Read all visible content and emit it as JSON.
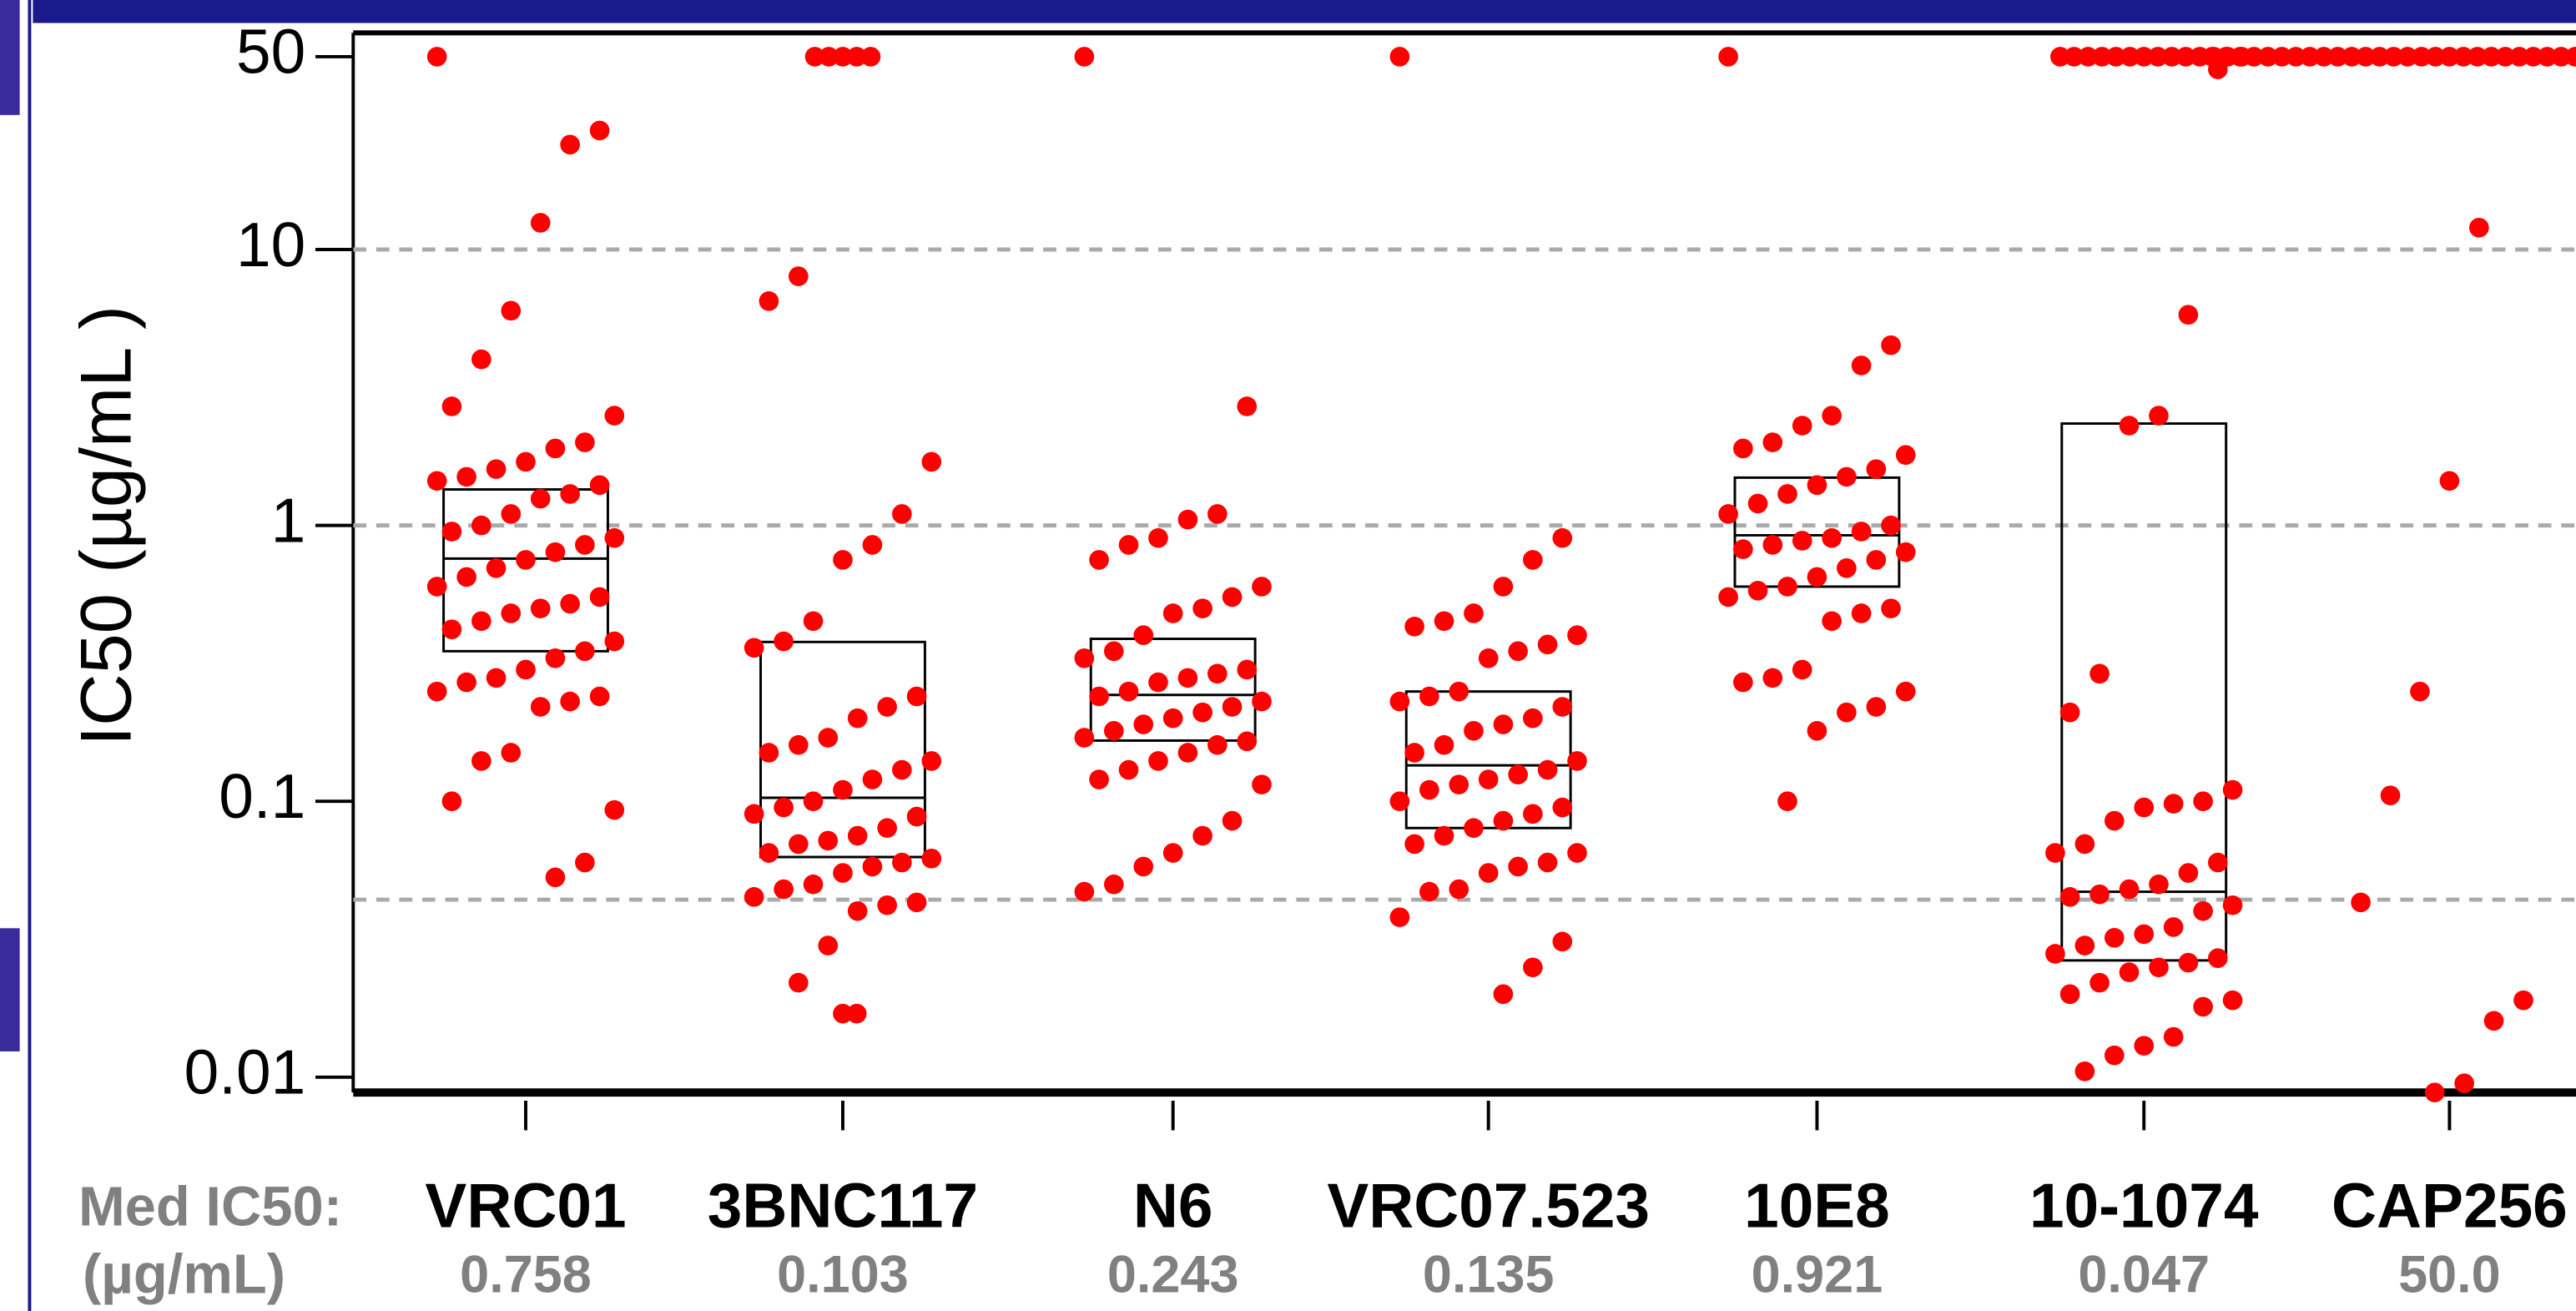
{
  "chart_data": {
    "type": "box",
    "y_label": "IC50 (µg/mL )",
    "row_labels": [
      "Med IC50:",
      "(µg/mL)"
    ],
    "log_scale": true,
    "ylim": [
      0.0088,
      61
    ],
    "yticks": [
      0.01,
      0.1,
      1,
      10,
      50
    ],
    "grid_lines": [
      10,
      1,
      0.044
    ],
    "point_color": "#ff0000",
    "box_color": "#000000",
    "groups": [
      {
        "name": "VRC01",
        "q1": 0.35,
        "median": 0.758,
        "q3": 1.35,
        "points": [
          50,
          27,
          24,
          12.5,
          6,
          4,
          2.7,
          2.5,
          2,
          1.9,
          1.7,
          1.6,
          1.5,
          1.45,
          1.4,
          1.3,
          1.25,
          1.1,
          1.0,
          0.95,
          0.9,
          0.85,
          0.8,
          0.75,
          0.7,
          0.65,
          0.6,
          0.55,
          0.52,
          0.5,
          0.48,
          0.45,
          0.42,
          0.38,
          0.35,
          0.33,
          0.3,
          0.28,
          0.27,
          0.25,
          0.24,
          0.23,
          0.22,
          0.15,
          0.14,
          0.1,
          0.093,
          0.06,
          0.053
        ]
      },
      {
        "name": "3BNC117",
        "q1": 0.0628,
        "median": 0.103,
        "q3": 0.378,
        "points": [
          50,
          50,
          50,
          50,
          50,
          8,
          6.5,
          1.7,
          1.1,
          0.85,
          0.75,
          0.45,
          0.38,
          0.36,
          0.24,
          0.22,
          0.2,
          0.17,
          0.16,
          0.15,
          0.14,
          0.13,
          0.12,
          0.11,
          0.1,
          0.095,
          0.09,
          0.088,
          0.08,
          0.075,
          0.072,
          0.07,
          0.065,
          0.062,
          0.06,
          0.058,
          0.055,
          0.05,
          0.048,
          0.045,
          0.043,
          0.042,
          0.04,
          0.03,
          0.022,
          0.017,
          0.017
        ]
      },
      {
        "name": "N6",
        "q1": 0.166,
        "median": 0.243,
        "q3": 0.388,
        "points": [
          50,
          2.7,
          1.1,
          1.05,
          0.9,
          0.85,
          0.75,
          0.6,
          0.55,
          0.5,
          0.48,
          0.4,
          0.35,
          0.33,
          0.3,
          0.29,
          0.28,
          0.27,
          0.25,
          0.24,
          0.23,
          0.22,
          0.21,
          0.2,
          0.19,
          0.18,
          0.17,
          0.165,
          0.16,
          0.15,
          0.14,
          0.13,
          0.12,
          0.115,
          0.085,
          0.075,
          0.065,
          0.058,
          0.05,
          0.047
        ]
      },
      {
        "name": "VRC07.523",
        "q1": 0.08,
        "median": 0.135,
        "q3": 0.25,
        "points": [
          50,
          0.9,
          0.75,
          0.6,
          0.48,
          0.45,
          0.43,
          0.4,
          0.37,
          0.35,
          0.33,
          0.25,
          0.24,
          0.23,
          0.22,
          0.2,
          0.19,
          0.18,
          0.16,
          0.15,
          0.14,
          0.13,
          0.125,
          0.12,
          0.115,
          0.11,
          0.1,
          0.095,
          0.09,
          0.085,
          0.08,
          0.075,
          0.07,
          0.065,
          0.06,
          0.058,
          0.055,
          0.048,
          0.047,
          0.038,
          0.031,
          0.025,
          0.02
        ]
      },
      {
        "name": "10E8",
        "q1": 0.6,
        "median": 0.921,
        "q3": 1.49,
        "points": [
          50,
          4.5,
          3.8,
          2.5,
          2.3,
          2.0,
          1.9,
          1.8,
          1.6,
          1.5,
          1.4,
          1.3,
          1.2,
          1.1,
          1.0,
          0.95,
          0.9,
          0.88,
          0.85,
          0.82,
          0.8,
          0.75,
          0.7,
          0.65,
          0.6,
          0.58,
          0.55,
          0.5,
          0.48,
          0.45,
          0.3,
          0.28,
          0.27,
          0.25,
          0.22,
          0.21,
          0.18,
          0.1
        ]
      },
      {
        "name": "10-1074",
        "q1": 0.0265,
        "median": 0.047,
        "q3": 2.34,
        "points": [
          50,
          50,
          50,
          50,
          50,
          50,
          50,
          50,
          50,
          50,
          50,
          50,
          50,
          50,
          45,
          5.8,
          2.5,
          2.3,
          0.29,
          0.21,
          0.11,
          0.1,
          0.098,
          0.095,
          0.085,
          0.07,
          0.065,
          0.06,
          0.055,
          0.05,
          0.048,
          0.046,
          0.045,
          0.042,
          0.04,
          0.035,
          0.033,
          0.032,
          0.03,
          0.028,
          0.027,
          0.026,
          0.025,
          0.024,
          0.022,
          0.02,
          0.019,
          0.018,
          0.014,
          0.013,
          0.012,
          0.0105
        ]
      },
      {
        "name": "CAP256",
        "q1": 50,
        "median": 50,
        "q3": 50,
        "median_label": "50.0",
        "points": [
          50,
          50,
          50,
          50,
          50,
          50,
          50,
          50,
          50,
          50,
          50,
          50,
          50,
          50,
          50,
          50,
          50,
          50,
          50,
          50,
          50,
          50,
          50,
          50,
          50,
          50,
          50,
          50,
          50,
          50,
          50,
          50,
          50,
          50,
          50,
          12,
          1.45,
          0.25,
          0.105,
          0.043,
          0.019,
          0.016,
          0.0095,
          0.0088
        ]
      }
    ]
  }
}
